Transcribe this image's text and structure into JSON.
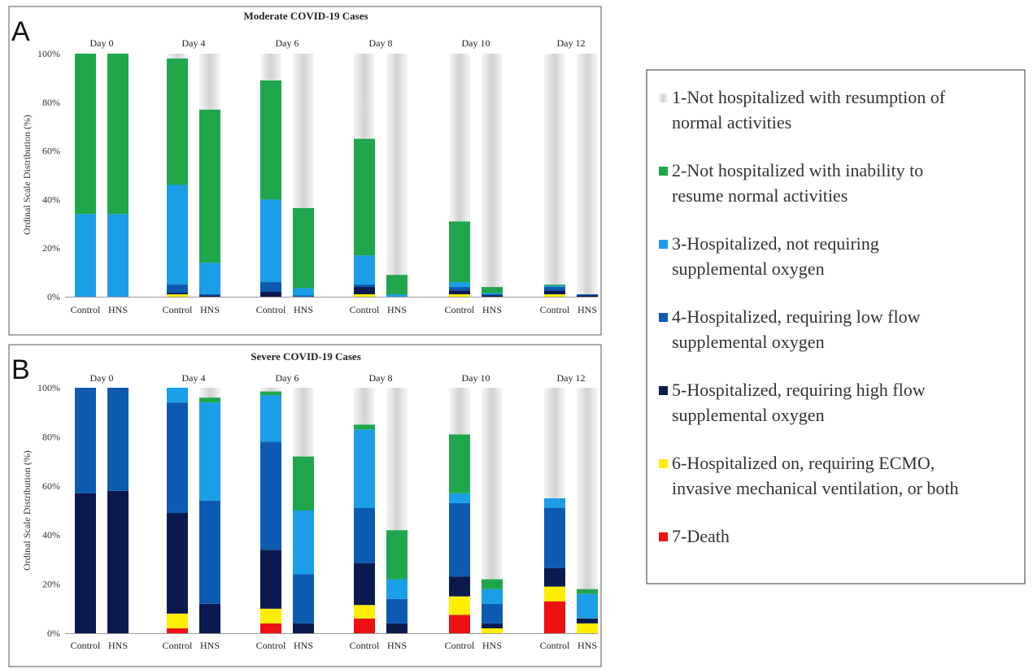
{
  "chart_data": [
    {
      "type": "bar",
      "stacked": true,
      "panel": "A",
      "title": "Moderate COVID-19 Cases",
      "ylabel": "Ordinal Scale Distribution (%)",
      "ylim": [
        0,
        100
      ],
      "yticks": [
        "0%",
        "20%",
        "40%",
        "60%",
        "80%",
        "100%"
      ],
      "groups": [
        "Day 0",
        "Day 4",
        "Day 6",
        "Day 8",
        "Day 10",
        "Day 12"
      ],
      "categories": [
        "Control",
        "HNS"
      ],
      "stack_order": [
        "7-Death",
        "6-ECMO",
        "5-High flow",
        "4-Low flow",
        "3-No oxygen",
        "2-Not hospitalized, inability",
        "1-Not hospitalized, normal"
      ],
      "bars": [
        {
          "group": 0,
          "cat": 0,
          "values": [
            0,
            0,
            0,
            0,
            34,
            66,
            0
          ]
        },
        {
          "group": 0,
          "cat": 1,
          "values": [
            0,
            0,
            0,
            0,
            34,
            66,
            0
          ]
        },
        {
          "group": 1,
          "cat": 0,
          "values": [
            0,
            1,
            0.5,
            3.5,
            41,
            52,
            2
          ]
        },
        {
          "group": 1,
          "cat": 1,
          "values": [
            0,
            0,
            0.5,
            0.5,
            13,
            63,
            23
          ]
        },
        {
          "group": 2,
          "cat": 0,
          "values": [
            0,
            0,
            2,
            4,
            34,
            49,
            11
          ]
        },
        {
          "group": 2,
          "cat": 1,
          "values": [
            0,
            0,
            0,
            0.5,
            3,
            33,
            63.5
          ]
        },
        {
          "group": 3,
          "cat": 0,
          "values": [
            0,
            1,
            3,
            1,
            12,
            48,
            35
          ]
        },
        {
          "group": 3,
          "cat": 1,
          "values": [
            0,
            0,
            0,
            0,
            1,
            8,
            91
          ]
        },
        {
          "group": 4,
          "cat": 0,
          "values": [
            0,
            1,
            1.5,
            1.5,
            2,
            25,
            69
          ]
        },
        {
          "group": 4,
          "cat": 1,
          "values": [
            0,
            0,
            0.5,
            0.5,
            0.5,
            2.5,
            96
          ]
        },
        {
          "group": 5,
          "cat": 0,
          "values": [
            0,
            1,
            1.5,
            1.5,
            0.5,
            0.5,
            95
          ]
        },
        {
          "group": 5,
          "cat": 1,
          "values": [
            0,
            0,
            0.5,
            0.5,
            0,
            0,
            99
          ]
        }
      ]
    },
    {
      "type": "bar",
      "stacked": true,
      "panel": "B",
      "title": "Severe COVID-19 Cases",
      "ylabel": "Ordinal Scale Distribution (%)",
      "ylim": [
        0,
        100
      ],
      "yticks": [
        "0%",
        "20%",
        "40%",
        "60%",
        "80%",
        "100%"
      ],
      "groups": [
        "Day 0",
        "Day 4",
        "Day 6",
        "Day 8",
        "Day 10",
        "Day 12"
      ],
      "categories": [
        "Control",
        "HNS"
      ],
      "stack_order": [
        "7-Death",
        "6-ECMO",
        "5-High flow",
        "4-Low flow",
        "3-No oxygen",
        "2-Not hospitalized, inability",
        "1-Not hospitalized, normal"
      ],
      "bars": [
        {
          "group": 0,
          "cat": 0,
          "values": [
            0,
            0,
            57,
            43,
            0,
            0,
            0
          ]
        },
        {
          "group": 0,
          "cat": 1,
          "values": [
            0,
            0,
            58,
            42,
            0,
            0,
            0
          ]
        },
        {
          "group": 1,
          "cat": 0,
          "values": [
            2,
            6,
            41,
            45,
            6,
            0,
            0
          ]
        },
        {
          "group": 1,
          "cat": 1,
          "values": [
            0,
            0,
            12,
            42,
            40,
            2,
            4
          ]
        },
        {
          "group": 2,
          "cat": 0,
          "values": [
            4,
            6,
            24,
            44,
            19,
            1.5,
            1.5
          ]
        },
        {
          "group": 2,
          "cat": 1,
          "values": [
            0,
            0,
            4,
            20,
            26,
            22,
            28
          ]
        },
        {
          "group": 3,
          "cat": 0,
          "values": [
            6,
            5.5,
            17,
            22.5,
            32,
            2,
            15
          ]
        },
        {
          "group": 3,
          "cat": 1,
          "values": [
            0,
            0,
            4,
            10,
            8,
            20,
            58
          ]
        },
        {
          "group": 4,
          "cat": 0,
          "values": [
            7.5,
            7.5,
            8,
            30,
            4,
            24,
            19
          ]
        },
        {
          "group": 4,
          "cat": 1,
          "values": [
            0,
            2,
            2,
            8,
            6,
            4,
            78
          ]
        },
        {
          "group": 5,
          "cat": 0,
          "values": [
            13,
            6,
            7.5,
            24.5,
            4,
            0,
            45
          ]
        },
        {
          "group": 5,
          "cat": 1,
          "values": [
            0,
            4,
            2,
            0,
            10,
            2,
            82
          ]
        }
      ]
    }
  ],
  "legend": {
    "placement": "right",
    "items": [
      {
        "key": "1",
        "color": "#e8e8e8",
        "lines": [
          "1-Not hospitalized with resumption of",
          "normal activities"
        ]
      },
      {
        "key": "2",
        "color": "#1fa64a",
        "lines": [
          "2-Not hospitalized with inability to",
          "resume normal activities"
        ]
      },
      {
        "key": "3",
        "color": "#1b9ee8",
        "lines": [
          "3-Hospitalized, not requiring",
          "supplemental oxygen"
        ]
      },
      {
        "key": "4",
        "color": "#0d5bb0",
        "lines": [
          "4-Hospitalized, requiring low flow",
          "supplemental oxygen"
        ]
      },
      {
        "key": "5",
        "color": "#0a1a4e",
        "lines": [
          "5-Hospitalized, requiring high flow",
          "supplemental oxygen"
        ]
      },
      {
        "key": "6",
        "color": "#ffee00",
        "lines": [
          "6-Hospitalized on, requiring ECMO,",
          "invasive mechanical ventilation, or both"
        ]
      },
      {
        "key": "7",
        "color": "#ee1111",
        "lines": [
          "7-Death"
        ]
      }
    ]
  },
  "colors_by_stack": [
    "#ee1111",
    "#ffee00",
    "#0a1a4e",
    "#0d5bb0",
    "#1b9ee8",
    "#1fa64a",
    "#e8e8e8"
  ]
}
